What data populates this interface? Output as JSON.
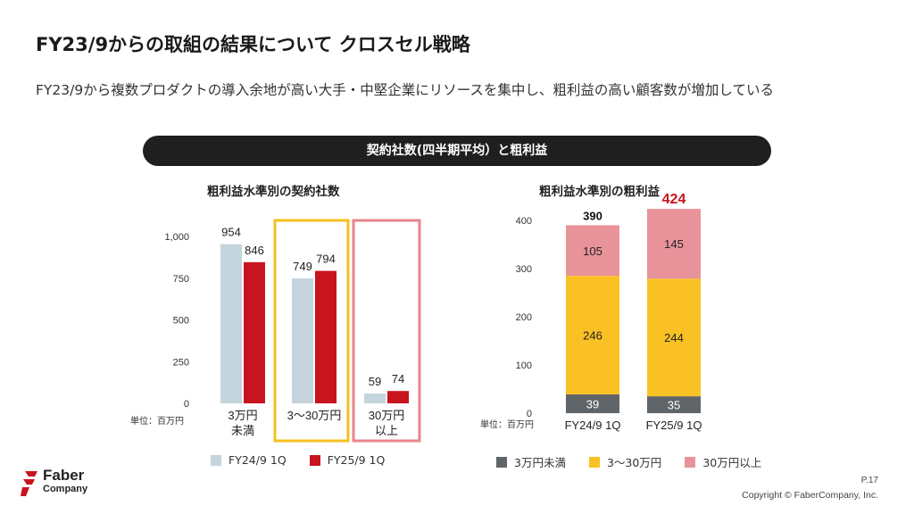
{
  "header": {
    "title": "FY23/9からの取組の結果について クロスセル戦略",
    "subtitle": "FY23/9から複数プロダクトの導入余地が高い大手・中堅企業にリソースを集中し、粗利益の高い顧客数が増加している",
    "banner": "契約社数(四半期平均）と粗利益"
  },
  "chart_data": [
    {
      "type": "bar",
      "title": "粗利益水準別の契約社数",
      "unit_label": "単位：百万円",
      "categories": [
        "3万円\n未満",
        "3〜30万円",
        "30万円\n以上"
      ],
      "category_lines": [
        [
          "3万円",
          "未満"
        ],
        [
          "3〜30万円"
        ],
        [
          "30万円",
          "以上"
        ]
      ],
      "series": [
        {
          "name": "FY24/9 1Q",
          "values": [
            954,
            749,
            59
          ],
          "color": "#c5d5dd"
        },
        {
          "name": "FY25/9 1Q",
          "values": [
            846,
            794,
            74
          ],
          "color": "#c8141e"
        }
      ],
      "yticks": [
        0,
        250,
        500,
        750,
        1000
      ],
      "ytick_labels": [
        "0",
        "250",
        "500",
        "750",
        "1,000"
      ],
      "ylim": [
        0,
        1000
      ],
      "highlight_colors": [
        "#f5bf1e",
        "#e8868b"
      ],
      "legend_position": "bottom"
    },
    {
      "type": "bar",
      "stacked": true,
      "title": "粗利益水準別の粗利益",
      "unit_label": "単位：百万円",
      "categories": [
        "FY24/9 1Q",
        "FY25/9 1Q"
      ],
      "series": [
        {
          "name": "3万円未満",
          "values": [
            39,
            35
          ],
          "color": "#5f6569"
        },
        {
          "name": "3〜30万円",
          "values": [
            246,
            244
          ],
          "color": "#f9c124"
        },
        {
          "name": "30万円以上",
          "values": [
            105,
            145
          ],
          "color": "#e8939a"
        }
      ],
      "totals": [
        390,
        424
      ],
      "total_colors": [
        "#111111",
        "#c8141e"
      ],
      "yticks": [
        0,
        100,
        200,
        300,
        400
      ],
      "ylim": [
        0,
        400
      ],
      "legend_position": "bottom"
    }
  ],
  "footer": {
    "logo_line1": "Faber",
    "logo_line2": "Company",
    "page": "P.17",
    "copyright": "Copyright © FaberCompany, Inc."
  }
}
